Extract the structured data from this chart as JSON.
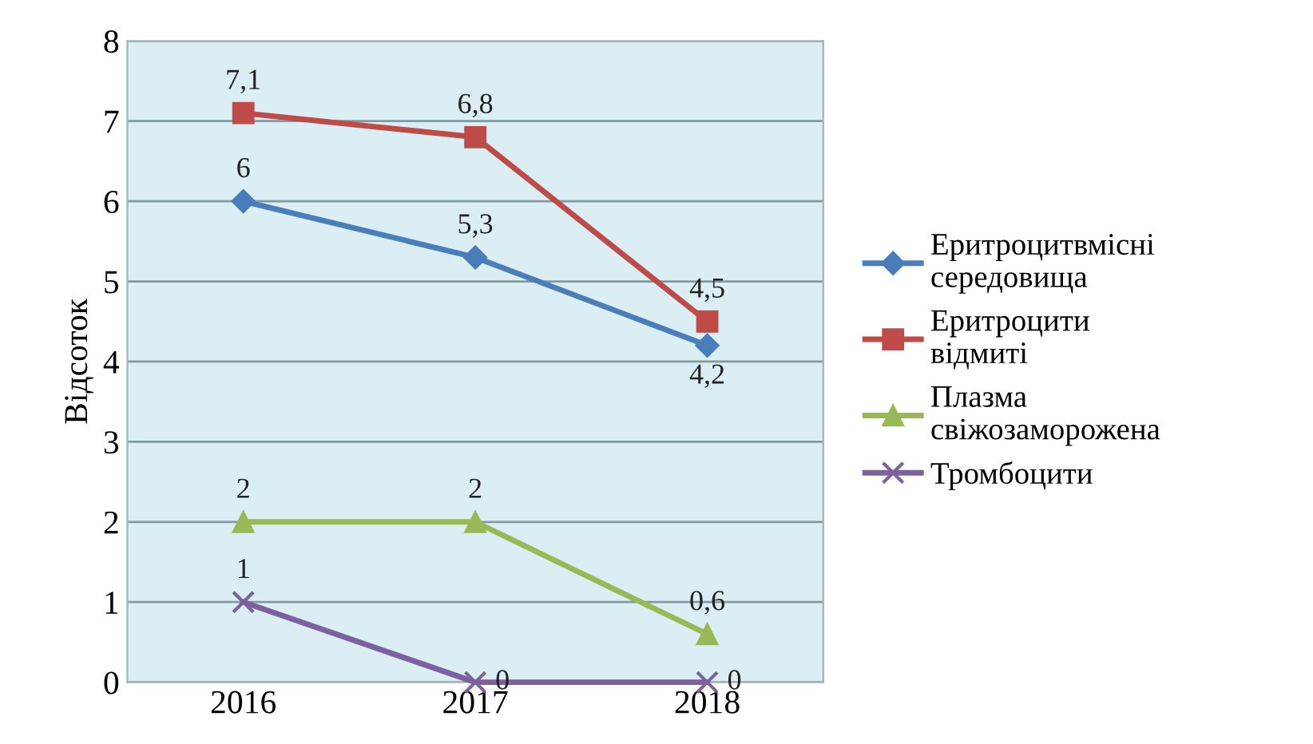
{
  "chart_data": {
    "type": "line",
    "ylabel": "Відсоток",
    "categories": [
      "2016",
      "2017",
      "2018"
    ],
    "ylim": [
      0,
      8
    ],
    "yticks": [
      0,
      1,
      2,
      3,
      4,
      5,
      6,
      7,
      8
    ],
    "grid": "y",
    "legend": "right",
    "series": [
      {
        "name": "Еритроцитвмісні середовища",
        "color": "#4a7ebb",
        "marker": "diamond",
        "values": [
          6,
          5.3,
          4.2
        ],
        "value_labels": [
          "6",
          "5,3",
          "4,2"
        ]
      },
      {
        "name": "Еритроцити відмиті",
        "color": "#be4b48",
        "marker": "square",
        "values": [
          7.1,
          6.8,
          4.5
        ],
        "value_labels": [
          "7,1",
          "6,8",
          "4,5"
        ]
      },
      {
        "name": "Плазма свіжозаморожена",
        "color": "#98b954",
        "marker": "triangle",
        "values": [
          2,
          2,
          0.6
        ],
        "value_labels": [
          "2",
          "2",
          "0,6"
        ]
      },
      {
        "name": "Тромбоцити",
        "color": "#7d60a0",
        "marker": "cross",
        "values": [
          1,
          0,
          0
        ],
        "value_labels": [
          "1",
          "0",
          "0"
        ]
      }
    ]
  }
}
